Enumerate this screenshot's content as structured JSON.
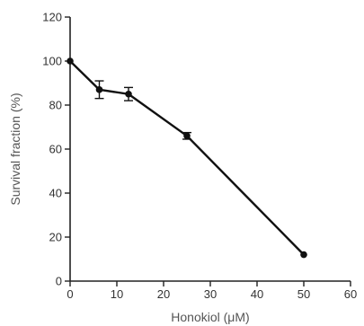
{
  "chart_data": {
    "type": "line",
    "title": "",
    "xlabel": "Honokiol (μM)",
    "ylabel": "Survival fraction (%)",
    "xlim": [
      0,
      60
    ],
    "ylim": [
      0,
      120
    ],
    "x_ticks": [
      "0",
      "10",
      "20",
      "30",
      "40",
      "50",
      "60"
    ],
    "y_ticks": [
      "0",
      "20",
      "40",
      "60",
      "80",
      "100",
      "120"
    ],
    "grid": false,
    "legend": "none",
    "series": [
      {
        "x": [
          0,
          6.25,
          12.5,
          25,
          50
        ],
        "y": [
          100,
          87,
          85,
          66,
          12
        ],
        "error": [
          0,
          4,
          3,
          1.5,
          0
        ],
        "color": "#111111",
        "marker": "circle"
      }
    ]
  }
}
